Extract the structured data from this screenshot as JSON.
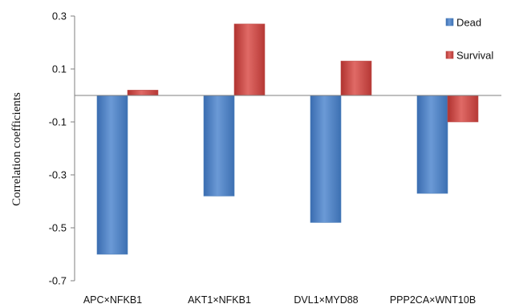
{
  "chart_data": {
    "type": "bar",
    "title": "",
    "xlabel": "",
    "ylabel": "Correlation coefficients",
    "categories": [
      "APC×NFKB1",
      "AKT1×NFKB1",
      "DVL1×MYD88",
      "PPP2CA×WNT10B"
    ],
    "series": [
      {
        "name": "Dead",
        "values": [
          -0.6,
          -0.38,
          -0.48,
          -0.37
        ],
        "color": "#4a7ebb"
      },
      {
        "name": "Survival",
        "values": [
          0.02,
          0.27,
          0.13,
          -0.1
        ],
        "color": "#c0504d"
      }
    ],
    "ylim": [
      -0.7,
      0.3
    ],
    "yticks": [
      0.3,
      0.1,
      -0.1,
      -0.3,
      -0.5,
      -0.7
    ],
    "ytick_labels": [
      "0.3",
      "0.1",
      "-0.1",
      "-0.3",
      "-0.5",
      "-0.7"
    ],
    "grid": false,
    "legend_position": "top-right"
  }
}
